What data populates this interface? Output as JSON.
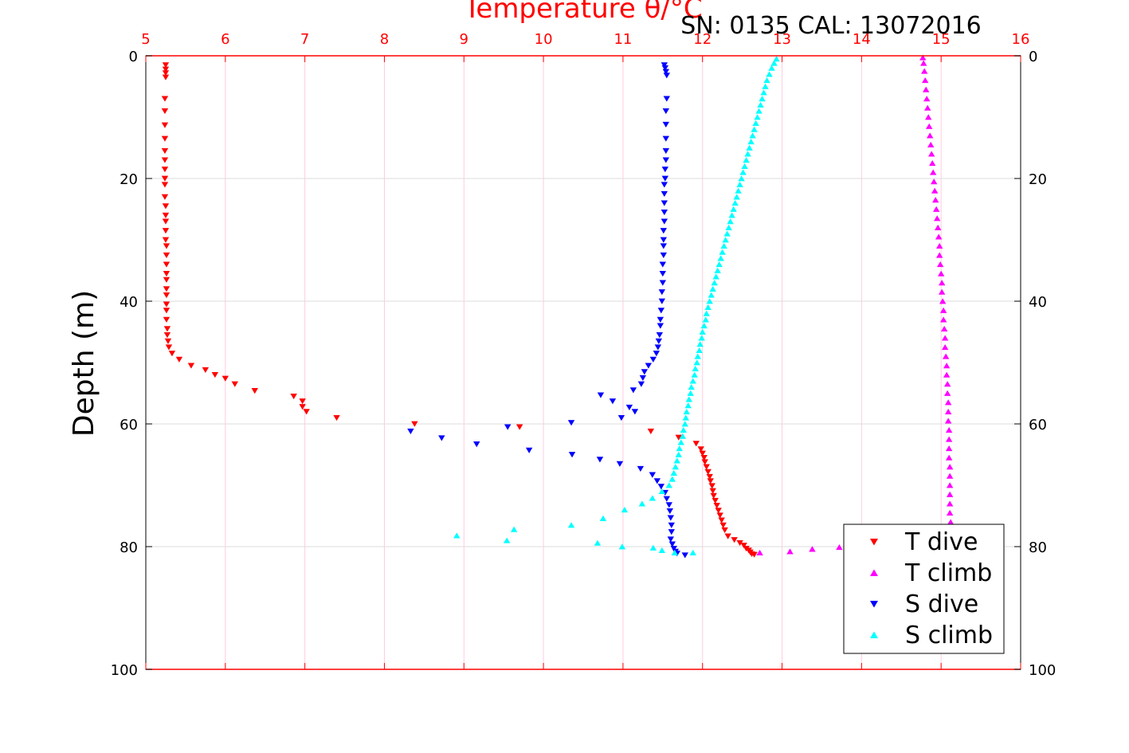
{
  "chart_data": {
    "type": "scatter",
    "title": "Temperature θ/°C",
    "subtitle": "SN: 0135  CAL: 13072016",
    "xlabel": "Temperature θ/°C",
    "ylabel": "Depth (m)",
    "xlim": [
      5,
      16
    ],
    "ylim": [
      0,
      100
    ],
    "y_reversed": true,
    "grid": true,
    "x_ticks": [
      "5",
      "6",
      "7",
      "8",
      "9",
      "10",
      "11",
      "12",
      "13",
      "14",
      "15",
      "16"
    ],
    "y_ticks": [
      "0",
      "20",
      "40",
      "60",
      "80",
      "100"
    ],
    "legend_position": "bottom-right",
    "colors": {
      "axis_top": "#ff0000",
      "t_dive": "#ff0000",
      "t_climb": "#ff00ff",
      "s_dive": "#0000ff",
      "s_climb": "#00ffff"
    },
    "series": [
      {
        "name": "T dive",
        "marker": "triangle-down",
        "color": "#ff0000",
        "points": [
          [
            5.25,
            1.5
          ],
          [
            5.25,
            2.2
          ],
          [
            5.25,
            2.8
          ],
          [
            5.25,
            3.5
          ],
          [
            5.24,
            7
          ],
          [
            5.24,
            9
          ],
          [
            5.24,
            11.3
          ],
          [
            5.24,
            13.5
          ],
          [
            5.24,
            15.5
          ],
          [
            5.24,
            17
          ],
          [
            5.24,
            18.5
          ],
          [
            5.24,
            20
          ],
          [
            5.24,
            21
          ],
          [
            5.24,
            23
          ],
          [
            5.25,
            24.5
          ],
          [
            5.25,
            26
          ],
          [
            5.25,
            27
          ],
          [
            5.25,
            28.5
          ],
          [
            5.25,
            30
          ],
          [
            5.26,
            31
          ],
          [
            5.26,
            32.5
          ],
          [
            5.26,
            34
          ],
          [
            5.26,
            35.5
          ],
          [
            5.26,
            36.5
          ],
          [
            5.26,
            38
          ],
          [
            5.26,
            39
          ],
          [
            5.26,
            40.5
          ],
          [
            5.26,
            41.5
          ],
          [
            5.26,
            43
          ],
          [
            5.27,
            44.5
          ],
          [
            5.27,
            45.5
          ],
          [
            5.28,
            46.5
          ],
          [
            5.29,
            47.5
          ],
          [
            5.33,
            48.5
          ],
          [
            5.42,
            49.5
          ],
          [
            5.57,
            50.5
          ],
          [
            5.75,
            51.2
          ],
          [
            5.87,
            52
          ],
          [
            6.0,
            52.6
          ],
          [
            6.12,
            53.5
          ],
          [
            6.37,
            54.6
          ],
          [
            6.86,
            55.5
          ],
          [
            6.97,
            56.3
          ],
          [
            6.97,
            57.2
          ],
          [
            7.02,
            58
          ],
          [
            7.4,
            59
          ],
          [
            8.38,
            60
          ],
          [
            9.7,
            60.5
          ],
          [
            11.35,
            61.2
          ],
          [
            11.7,
            62.2
          ],
          [
            11.92,
            63.2
          ],
          [
            11.98,
            64.1
          ],
          [
            12.0,
            64.8
          ],
          [
            12.02,
            65.5
          ],
          [
            12.03,
            66.2
          ],
          [
            12.05,
            67
          ],
          [
            12.07,
            67.8
          ],
          [
            12.09,
            68.6
          ],
          [
            12.1,
            69.3
          ],
          [
            12.12,
            70.1
          ],
          [
            12.13,
            70.9
          ],
          [
            12.14,
            71.7
          ],
          [
            12.16,
            72.5
          ],
          [
            12.18,
            73.3
          ],
          [
            12.2,
            74.1
          ],
          [
            12.22,
            74.9
          ],
          [
            12.24,
            75.7
          ],
          [
            12.26,
            76.5
          ],
          [
            12.28,
            77.3
          ],
          [
            12.32,
            78.3
          ],
          [
            12.4,
            78.9
          ],
          [
            12.47,
            79.4
          ],
          [
            12.52,
            79.8
          ],
          [
            12.55,
            80.3
          ],
          [
            12.58,
            80.6
          ],
          [
            12.6,
            80.9
          ],
          [
            12.62,
            81.2
          ],
          [
            12.65,
            81.3
          ]
        ]
      },
      {
        "name": "T climb",
        "marker": "triangle-up",
        "color": "#ff00ff",
        "points": [
          [
            12.72,
            81
          ],
          [
            13.1,
            80.8
          ],
          [
            13.38,
            80.4
          ],
          [
            13.72,
            80.1
          ],
          [
            15.12,
            76
          ],
          [
            15.11,
            74.5
          ],
          [
            15.11,
            73
          ],
          [
            15.11,
            71.5
          ],
          [
            15.11,
            70
          ],
          [
            15.11,
            68.5
          ],
          [
            15.11,
            67
          ],
          [
            15.1,
            65.5
          ],
          [
            15.1,
            64
          ],
          [
            15.1,
            62.5
          ],
          [
            15.1,
            61
          ],
          [
            15.09,
            59.5
          ],
          [
            15.09,
            58
          ],
          [
            15.09,
            56.5
          ],
          [
            15.08,
            55
          ],
          [
            15.08,
            53.5
          ],
          [
            15.07,
            52
          ],
          [
            15.07,
            50.5
          ],
          [
            15.06,
            49
          ],
          [
            15.05,
            47.5
          ],
          [
            15.05,
            46
          ],
          [
            15.04,
            44.5
          ],
          [
            15.03,
            43
          ],
          [
            15.03,
            41.5
          ],
          [
            15.02,
            40
          ],
          [
            15.01,
            38.5
          ],
          [
            15.01,
            37
          ],
          [
            15.0,
            35.5
          ],
          [
            14.99,
            34
          ],
          [
            14.98,
            32.5
          ],
          [
            14.98,
            31
          ],
          [
            14.97,
            29.5
          ],
          [
            14.96,
            28
          ],
          [
            14.95,
            26.5
          ],
          [
            14.94,
            25
          ],
          [
            14.93,
            23.5
          ],
          [
            14.92,
            22
          ],
          [
            14.91,
            20.5
          ],
          [
            14.9,
            19
          ],
          [
            14.89,
            17.5
          ],
          [
            14.88,
            16
          ],
          [
            14.87,
            14.5
          ],
          [
            14.86,
            13
          ],
          [
            14.85,
            11.5
          ],
          [
            14.84,
            10
          ],
          [
            14.83,
            8.5
          ],
          [
            14.82,
            7
          ],
          [
            14.81,
            5.5
          ],
          [
            14.8,
            4
          ],
          [
            14.79,
            2.5
          ],
          [
            14.78,
            1.2
          ],
          [
            14.77,
            0.3
          ]
        ]
      },
      {
        "name": "S dive",
        "marker": "triangle-down",
        "color": "#0000ff",
        "points": [
          [
            11.52,
            1.5
          ],
          [
            11.53,
            2
          ],
          [
            11.54,
            2.6
          ],
          [
            11.55,
            3.2
          ],
          [
            11.55,
            7
          ],
          [
            11.54,
            9
          ],
          [
            11.54,
            11.2
          ],
          [
            11.54,
            13.5
          ],
          [
            11.54,
            15.5
          ],
          [
            11.54,
            17
          ],
          [
            11.53,
            18.5
          ],
          [
            11.53,
            20
          ],
          [
            11.52,
            21
          ],
          [
            11.52,
            22.5
          ],
          [
            11.52,
            24
          ],
          [
            11.52,
            25.5
          ],
          [
            11.52,
            27
          ],
          [
            11.51,
            28.5
          ],
          [
            11.51,
            30
          ],
          [
            11.51,
            31
          ],
          [
            11.51,
            32.5
          ],
          [
            11.5,
            34
          ],
          [
            11.5,
            35.5
          ],
          [
            11.5,
            37
          ],
          [
            11.49,
            38.5
          ],
          [
            11.49,
            40
          ],
          [
            11.48,
            41.5
          ],
          [
            11.47,
            43
          ],
          [
            11.47,
            44
          ],
          [
            11.46,
            45.5
          ],
          [
            11.45,
            46.5
          ],
          [
            11.44,
            47.5
          ],
          [
            11.42,
            48.5
          ],
          [
            11.38,
            49.5
          ],
          [
            11.32,
            50.5
          ],
          [
            11.27,
            51.5
          ],
          [
            11.25,
            52.5
          ],
          [
            11.23,
            53.5
          ],
          [
            11.13,
            54.5
          ],
          [
            10.72,
            55.3
          ],
          [
            10.87,
            56.3
          ],
          [
            11.08,
            57.3
          ],
          [
            11.15,
            58
          ],
          [
            10.98,
            59
          ],
          [
            10.35,
            59.8
          ],
          [
            9.55,
            60.5
          ],
          [
            8.33,
            61.2
          ],
          [
            8.72,
            62.3
          ],
          [
            9.16,
            63.3
          ],
          [
            9.82,
            64.3
          ],
          [
            10.36,
            65
          ],
          [
            10.71,
            65.8
          ],
          [
            10.96,
            66.5
          ],
          [
            11.22,
            67.3
          ],
          [
            11.37,
            68.3
          ],
          [
            11.43,
            69.3
          ],
          [
            11.48,
            70.2
          ],
          [
            11.53,
            71.2
          ],
          [
            11.55,
            72.2
          ],
          [
            11.58,
            73.2
          ],
          [
            11.59,
            74.2
          ],
          [
            11.6,
            75.3
          ],
          [
            11.61,
            76.5
          ],
          [
            11.61,
            77.6
          ],
          [
            11.6,
            78.8
          ],
          [
            11.62,
            79.6
          ],
          [
            11.64,
            80.3
          ],
          [
            11.66,
            80.8
          ],
          [
            11.68,
            81.1
          ],
          [
            11.78,
            81.4
          ]
        ]
      },
      {
        "name": "S climb",
        "marker": "triangle-up",
        "color": "#00ffff",
        "points": [
          [
            11.88,
            81
          ],
          [
            11.65,
            81
          ],
          [
            11.49,
            80.6
          ],
          [
            11.38,
            80.2
          ],
          [
            10.99,
            80
          ],
          [
            10.68,
            79.4
          ],
          [
            9.54,
            79
          ],
          [
            8.91,
            78.2
          ],
          [
            9.63,
            77.2
          ],
          [
            10.75,
            75.4
          ],
          [
            10.35,
            76.5
          ],
          [
            11.02,
            74
          ],
          [
            11.24,
            73
          ],
          [
            11.37,
            72.1
          ],
          [
            11.49,
            71
          ],
          [
            11.58,
            70
          ],
          [
            11.62,
            69
          ],
          [
            11.64,
            68
          ],
          [
            11.66,
            67
          ],
          [
            11.68,
            66
          ],
          [
            11.7,
            65
          ],
          [
            11.71,
            64
          ],
          [
            11.73,
            63
          ],
          [
            11.75,
            62
          ],
          [
            11.76,
            61
          ],
          [
            11.78,
            60
          ],
          [
            11.79,
            59
          ],
          [
            11.8,
            58
          ],
          [
            11.82,
            57
          ],
          [
            11.83,
            56
          ],
          [
            11.85,
            55
          ],
          [
            11.86,
            54
          ],
          [
            11.88,
            53
          ],
          [
            11.9,
            52
          ],
          [
            11.91,
            51
          ],
          [
            11.93,
            50
          ],
          [
            11.94,
            49
          ],
          [
            11.96,
            48
          ],
          [
            11.97,
            47
          ],
          [
            11.99,
            46
          ],
          [
            12.0,
            45
          ],
          [
            12.02,
            44
          ],
          [
            12.04,
            43
          ],
          [
            12.05,
            42
          ],
          [
            12.07,
            41
          ],
          [
            12.09,
            40
          ],
          [
            12.11,
            39
          ],
          [
            12.13,
            38
          ],
          [
            12.15,
            37
          ],
          [
            12.17,
            36
          ],
          [
            12.19,
            35
          ],
          [
            12.21,
            34
          ],
          [
            12.23,
            33
          ],
          [
            12.25,
            32
          ],
          [
            12.27,
            31
          ],
          [
            12.29,
            30
          ],
          [
            12.31,
            29
          ],
          [
            12.33,
            28
          ],
          [
            12.35,
            27
          ],
          [
            12.37,
            26
          ],
          [
            12.39,
            25
          ],
          [
            12.41,
            24
          ],
          [
            12.43,
            23
          ],
          [
            12.45,
            22
          ],
          [
            12.47,
            21
          ],
          [
            12.49,
            20
          ],
          [
            12.51,
            19
          ],
          [
            12.53,
            18
          ],
          [
            12.55,
            17
          ],
          [
            12.57,
            16
          ],
          [
            12.59,
            15
          ],
          [
            12.61,
            14
          ],
          [
            12.63,
            13
          ],
          [
            12.65,
            12
          ],
          [
            12.67,
            11
          ],
          [
            12.69,
            10
          ],
          [
            12.71,
            9
          ],
          [
            12.73,
            8
          ],
          [
            12.75,
            7
          ],
          [
            12.77,
            6
          ],
          [
            12.79,
            5
          ],
          [
            12.81,
            4
          ],
          [
            12.84,
            3
          ],
          [
            12.87,
            2
          ],
          [
            12.9,
            1.2
          ],
          [
            12.93,
            0.5
          ]
        ]
      }
    ]
  }
}
